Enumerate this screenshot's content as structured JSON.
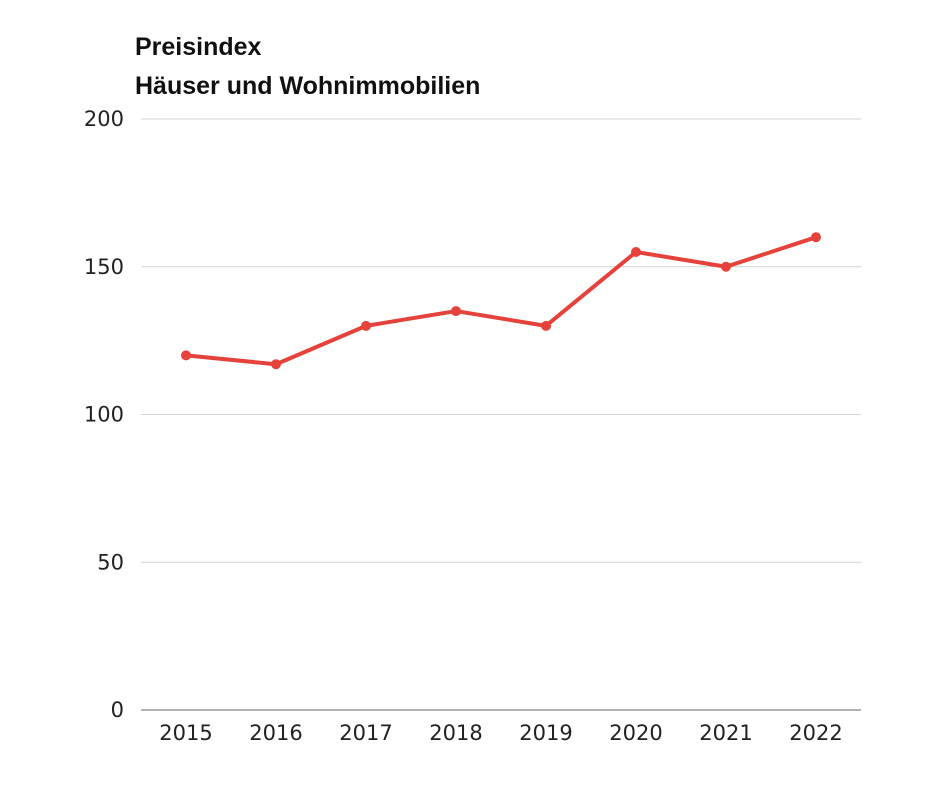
{
  "chart_data": {
    "type": "line",
    "title": "Preisindex",
    "subtitle": "Häuser und Wohnimmobilien",
    "xlabel": "",
    "ylabel": "",
    "categories": [
      "2015",
      "2016",
      "2017",
      "2018",
      "2019",
      "2020",
      "2021",
      "2022"
    ],
    "series": [
      {
        "name": "Preisindex",
        "values": [
          120,
          117,
          130,
          135,
          130,
          155,
          150,
          160
        ],
        "color": "#e4423a"
      }
    ],
    "ylim": [
      0,
      200
    ],
    "yticks": [
      0,
      50,
      100,
      150,
      200
    ],
    "grid": true,
    "legend": "none"
  }
}
